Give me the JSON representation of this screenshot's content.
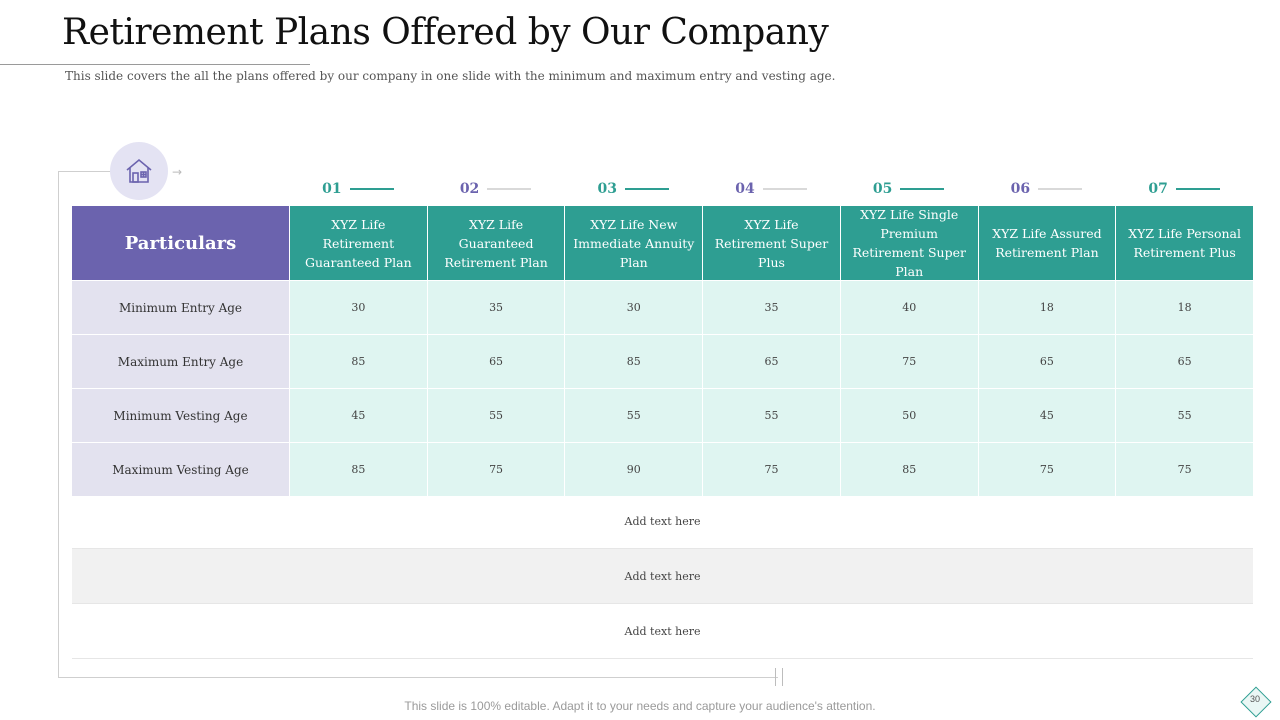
{
  "title": "Retirement Plans Offered by Our Company",
  "subtitle": "This slide covers the all the plans offered by our company in one slide with the minimum and maximum entry and vesting age.",
  "table": {
    "corner_header": "Particulars",
    "column_numbers": [
      "01",
      "02",
      "03",
      "04",
      "05",
      "06",
      "07"
    ],
    "number_colors": [
      "#2e9e92",
      "#6b63ae",
      "#2e9e92",
      "#6b63ae",
      "#2e9e92",
      "#6b63ae",
      "#2e9e92"
    ],
    "columns": [
      "XYZ Life Retirement Guaranteed Plan",
      "XYZ Life Guaranteed Retirement Plan",
      "XYZ Life New Immediate Annuity Plan",
      "XYZ Life Retirement Super Plus",
      "XYZ Life Single Premium Retirement Super Plan",
      "XYZ Life Assured Retirement Plan",
      "XYZ Life Personal Retirement Plus"
    ],
    "rows": [
      {
        "label": "Minimum Entry Age",
        "values": [
          "30",
          "35",
          "30",
          "35",
          "40",
          "18",
          "18"
        ]
      },
      {
        "label": "Maximum Entry Age",
        "values": [
          "85",
          "65",
          "85",
          "65",
          "75",
          "65",
          "65"
        ]
      },
      {
        "label": "Minimum Vesting Age",
        "values": [
          "45",
          "55",
          "55",
          "55",
          "50",
          "45",
          "55"
        ]
      },
      {
        "label": "Maximum Vesting Age",
        "values": [
          "85",
          "75",
          "90",
          "75",
          "85",
          "75",
          "75"
        ]
      }
    ],
    "extra_rows": [
      "Add text here",
      "Add text here",
      "Add text here"
    ]
  },
  "colors": {
    "purple": "#6b63ae",
    "teal": "#2e9e92",
    "light_teal": "#dff5f1",
    "lavender": "#e3e2ef"
  },
  "icons": {
    "header_icon": "house-icon"
  },
  "footer": "This slide is 100% editable. Adapt it to your needs and capture your audience's attention.",
  "page_number": "30"
}
